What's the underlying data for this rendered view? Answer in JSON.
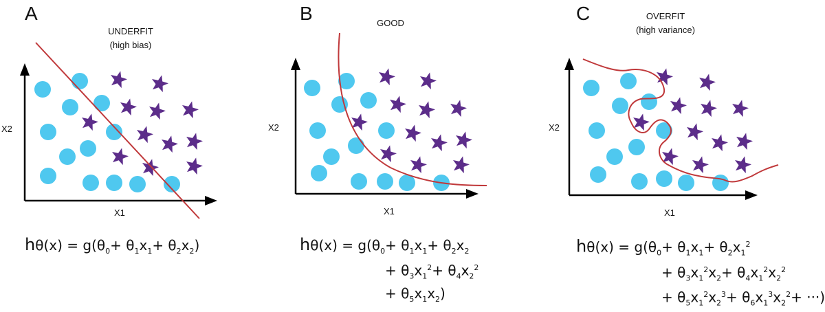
{
  "colors": {
    "circle": "#4fc8ef",
    "star": "#5c2d8a",
    "curve": "#c0393b",
    "axis": "#000000"
  },
  "panels": [
    {
      "letter": "A",
      "title_line1": "UNDERFIT",
      "title_line2": "(high bias)",
      "xlabel": "X1",
      "ylabel": "X2",
      "formula_lines": [
        "hθ(x) = g(θ₀+ θ₁x₁+ θ₂x₂)"
      ]
    },
    {
      "letter": "B",
      "title_line1": "GOOD",
      "title_line2": "",
      "xlabel": "X1",
      "ylabel": "X2",
      "formula_lines": [
        "hθ(x) = g(θ₀+ θ₁x₁+ θ₂x₂",
        "+ θ₃x₁²+ θ₄x₂²",
        "+ θ₅x₁x₂)"
      ]
    },
    {
      "letter": "C",
      "title_line1": "OVERFIT",
      "title_line2": "(high variance)",
      "xlabel": "X1",
      "ylabel": "X2",
      "formula_lines": [
        "hθ(x) = g(θ₀+ θ₁x₁+ θ₂x₁²",
        "+ θ₃x₁²x₂+ θ₄x₁²x₂²",
        "+ θ₅x₁²x₂³+ θ₆x₁³x₂²+ ···)"
      ]
    }
  ]
}
